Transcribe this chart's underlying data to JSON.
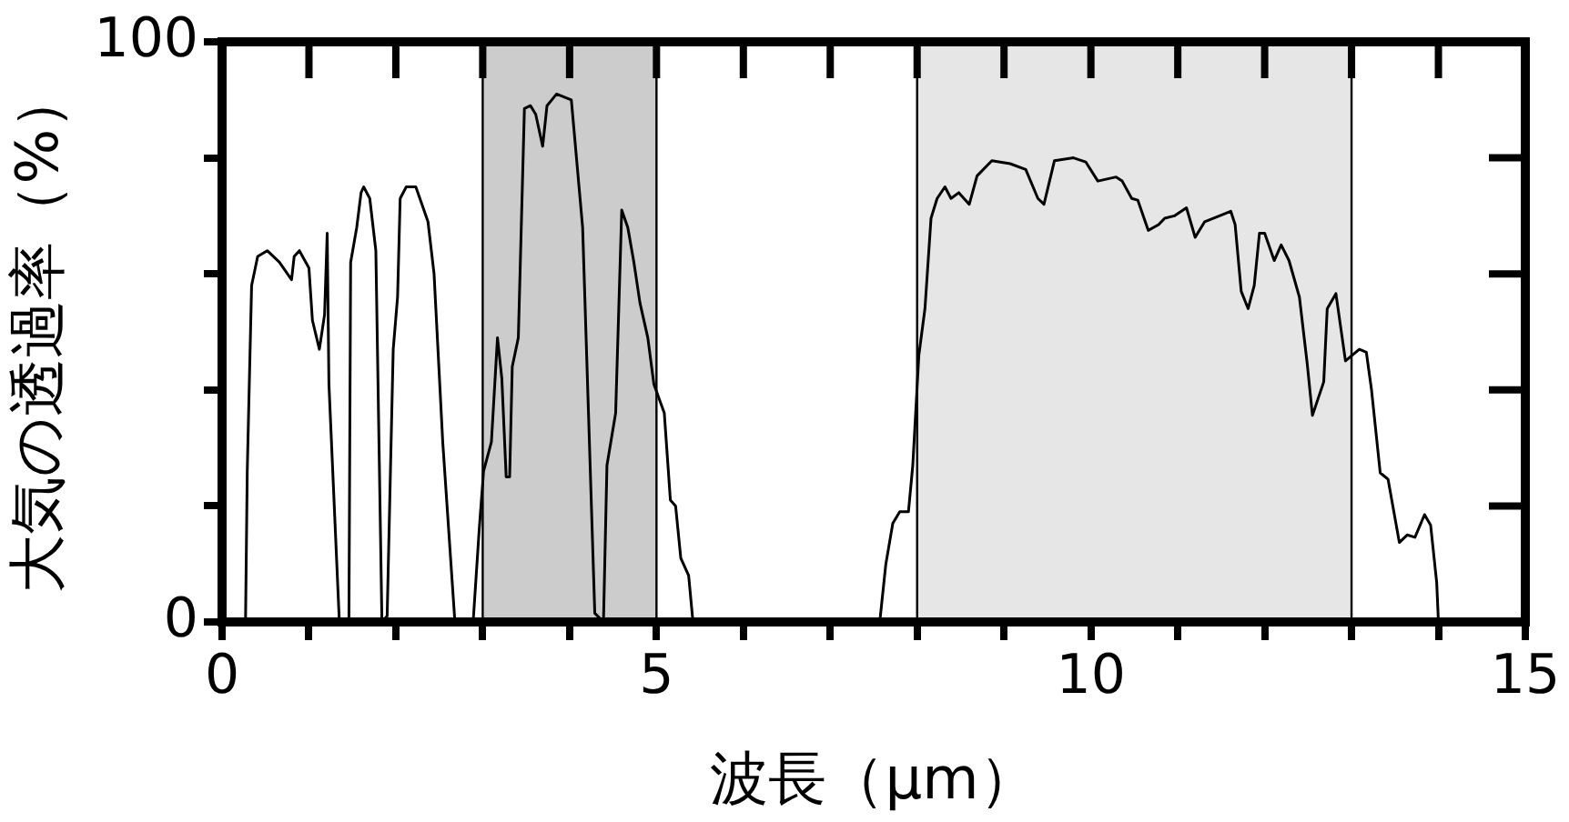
{
  "chart_data": {
    "type": "line",
    "xlabel": "波長（μm）",
    "ylabel": "大気の透過率（%）",
    "color": "#000000",
    "grid": false,
    "legend": false,
    "xlim": [
      0,
      15
    ],
    "ylim": [
      0,
      100
    ],
    "xticks": [
      0,
      {
        "value": 1,
        "label": null
      },
      {
        "value": 2,
        "label": null
      },
      {
        "value": 3,
        "label": null
      },
      {
        "value": 4,
        "label": null
      },
      5,
      {
        "value": 6,
        "label": null
      },
      {
        "value": 7,
        "label": null
      },
      {
        "value": 8,
        "label": null
      },
      {
        "value": 9,
        "label": null
      },
      10,
      {
        "value": 11,
        "label": null
      },
      {
        "value": 12,
        "label": null
      },
      {
        "value": 13,
        "label": null
      },
      {
        "value": 14,
        "label": null
      },
      15
    ],
    "yticks": [
      0,
      {
        "value": 20,
        "label": null
      },
      {
        "value": 40,
        "label": null
      },
      {
        "value": 60,
        "label": null
      },
      {
        "value": 80,
        "label": null
      },
      100
    ],
    "bands": [
      {
        "axis": "x",
        "from": 3,
        "to": 5,
        "color": "#cccccc"
      },
      {
        "axis": "x",
        "from": 8,
        "to": 13,
        "color": "#e6e6e6"
      }
    ],
    "x": [
      0.27,
      0.29,
      0.34,
      0.41,
      0.52,
      0.66,
      0.8,
      0.83,
      0.89,
      1.0,
      1.04,
      1.12,
      1.18,
      1.21,
      1.23,
      1.35,
      1.46,
      1.48,
      1.55,
      1.6,
      1.63,
      1.7,
      1.77,
      1.84,
      1.9,
      1.97,
      2.02,
      2.05,
      2.12,
      2.23,
      2.37,
      2.44,
      2.54,
      2.68,
      2.89,
      2.96,
      3.01,
      3.1,
      3.17,
      3.22,
      3.27,
      3.31,
      3.34,
      3.41,
      3.48,
      3.55,
      3.61,
      3.69,
      3.74,
      3.85,
      4.02,
      4.15,
      4.29,
      4.39,
      4.43,
      4.53,
      4.6,
      4.67,
      4.74,
      4.81,
      4.9,
      4.97,
      5.09,
      5.16,
      5.22,
      5.28,
      5.37,
      5.42,
      7.57,
      7.64,
      7.72,
      7.8,
      7.9,
      7.95,
      8.02,
      8.09,
      8.16,
      8.23,
      8.32,
      8.39,
      8.48,
      8.6,
      8.69,
      8.86,
      9.07,
      9.25,
      9.39,
      9.46,
      9.58,
      9.8,
      9.94,
      10.08,
      10.29,
      10.36,
      10.47,
      10.54,
      10.66,
      10.78,
      10.85,
      10.96,
      11.1,
      11.2,
      11.31,
      11.48,
      11.61,
      11.66,
      11.73,
      11.81,
      11.88,
      11.94,
      12.0,
      12.11,
      12.19,
      12.28,
      12.4,
      12.49,
      12.55,
      12.68,
      12.72,
      12.82,
      12.93,
      13.09,
      13.17,
      13.23,
      13.33,
      13.42,
      13.55,
      13.64,
      13.73,
      13.84,
      13.91,
      13.98,
      14.0
    ],
    "values": [
      0,
      26,
      58,
      63,
      64,
      62,
      59,
      63,
      64,
      61,
      52,
      47,
      53,
      67,
      41,
      0,
      0,
      62,
      68,
      74,
      75,
      73,
      64,
      0,
      1,
      47,
      56,
      73,
      75,
      75,
      69,
      60,
      31,
      0,
      0,
      16,
      26,
      31,
      49,
      42,
      25,
      25,
      44,
      49,
      88.5,
      89,
      87.5,
      82,
      89,
      91,
      90,
      68,
      1.5,
      0,
      27,
      36,
      71,
      68,
      62,
      55,
      49,
      41,
      36,
      21,
      20,
      11,
      8,
      0,
      0,
      10,
      17,
      19,
      19,
      27,
      46,
      54,
      69.6,
      73,
      75,
      73,
      74,
      72,
      76.9,
      79.5,
      79,
      78,
      73,
      72,
      79.5,
      80,
      79.3,
      76,
      76.7,
      76,
      73,
      72.7,
      67.5,
      68.5,
      69.6,
      70,
      71.4,
      66.3,
      69,
      70,
      70.8,
      68.5,
      57,
      54,
      58,
      67,
      67,
      62.3,
      65,
      62.3,
      56,
      44.5,
      35.6,
      41.4,
      54,
      56.6,
      45,
      47,
      46.5,
      40,
      25.7,
      24.6,
      13.7,
      15,
      14.6,
      18.5,
      16.7,
      6.8,
      0
    ]
  }
}
